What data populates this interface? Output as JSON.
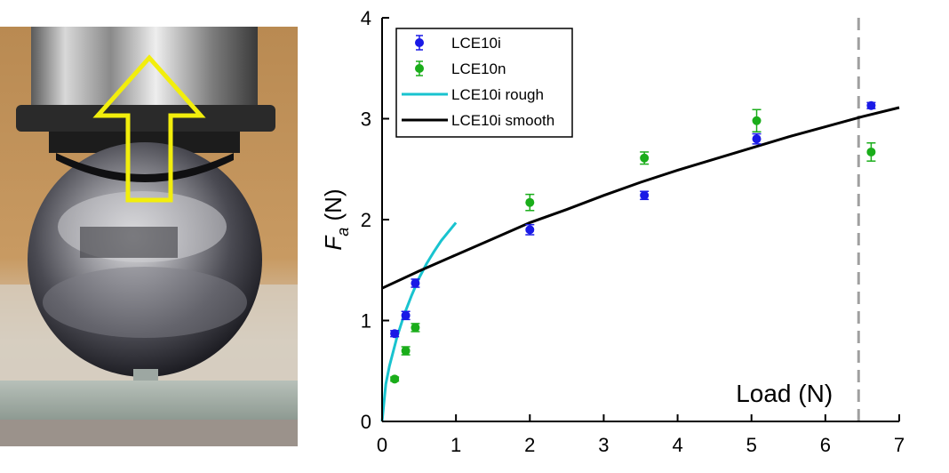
{
  "chart_data": {
    "type": "scatter",
    "title": "",
    "xlabel": "Load (N)",
    "ylabel_main": "F",
    "ylabel_sub": "a",
    "ylabel_unit": " (N)",
    "xlim": [
      0,
      7
    ],
    "ylim": [
      0,
      4
    ],
    "xticks": [
      "0",
      "1",
      "2",
      "3",
      "4",
      "5",
      "6",
      "7"
    ],
    "yticks": [
      "0",
      "1",
      "2",
      "3",
      "4"
    ],
    "grid": false,
    "legend_position": "top-left",
    "reference_line": {
      "x": 6.45,
      "style": "dashed",
      "color": "#a0a0a0"
    },
    "series": [
      {
        "name": "LCE10i",
        "kind": "errorbar",
        "color": "#1a1ae6",
        "points": [
          {
            "x": 0.17,
            "y": 0.87,
            "err": 0.03
          },
          {
            "x": 0.32,
            "y": 1.05,
            "err": 0.04
          },
          {
            "x": 0.45,
            "y": 1.37,
            "err": 0.04
          },
          {
            "x": 2.0,
            "y": 1.9,
            "err": 0.05
          },
          {
            "x": 3.55,
            "y": 2.24,
            "err": 0.04
          },
          {
            "x": 5.07,
            "y": 2.8,
            "err": 0.05
          },
          {
            "x": 6.62,
            "y": 3.13,
            "err": 0.03
          }
        ]
      },
      {
        "name": "LCE10n",
        "kind": "errorbar",
        "color": "#1aad1a",
        "points": [
          {
            "x": 0.17,
            "y": 0.42,
            "err": 0.02
          },
          {
            "x": 0.32,
            "y": 0.7,
            "err": 0.04
          },
          {
            "x": 0.45,
            "y": 0.93,
            "err": 0.04
          },
          {
            "x": 2.0,
            "y": 2.17,
            "err": 0.08
          },
          {
            "x": 3.55,
            "y": 2.61,
            "err": 0.06
          },
          {
            "x": 5.07,
            "y": 2.98,
            "err": 0.11
          },
          {
            "x": 6.62,
            "y": 2.67,
            "err": 0.09
          }
        ]
      },
      {
        "name": "LCE10i rough",
        "kind": "line",
        "color": "#19c3cf",
        "points": [
          {
            "x": 0,
            "y": 0
          },
          {
            "x": 0.05,
            "y": 0.37
          },
          {
            "x": 0.1,
            "y": 0.55
          },
          {
            "x": 0.2,
            "y": 0.83
          },
          {
            "x": 0.3,
            "y": 1.06
          },
          {
            "x": 0.4,
            "y": 1.25
          },
          {
            "x": 0.5,
            "y": 1.42
          },
          {
            "x": 0.6,
            "y": 1.56
          },
          {
            "x": 0.7,
            "y": 1.68
          },
          {
            "x": 0.8,
            "y": 1.79
          },
          {
            "x": 0.9,
            "y": 1.88
          },
          {
            "x": 1.0,
            "y": 1.97
          }
        ]
      },
      {
        "name": "LCE10i smooth",
        "kind": "line",
        "color": "#000000",
        "points": [
          {
            "x": 0,
            "y": 1.32
          },
          {
            "x": 0.5,
            "y": 1.49
          },
          {
            "x": 1.0,
            "y": 1.65
          },
          {
            "x": 1.5,
            "y": 1.81
          },
          {
            "x": 2.0,
            "y": 1.97
          },
          {
            "x": 2.5,
            "y": 2.1
          },
          {
            "x": 3.0,
            "y": 2.24
          },
          {
            "x": 3.5,
            "y": 2.37
          },
          {
            "x": 4.0,
            "y": 2.49
          },
          {
            "x": 4.5,
            "y": 2.6
          },
          {
            "x": 5.0,
            "y": 2.71
          },
          {
            "x": 5.5,
            "y": 2.82
          },
          {
            "x": 6.0,
            "y": 2.92
          },
          {
            "x": 6.5,
            "y": 3.02
          },
          {
            "x": 7.0,
            "y": 3.11
          }
        ]
      }
    ]
  },
  "photo": {
    "description_icon": "steel-ball-on-substrate-photo",
    "arrow_color": "#f2ee0c"
  }
}
